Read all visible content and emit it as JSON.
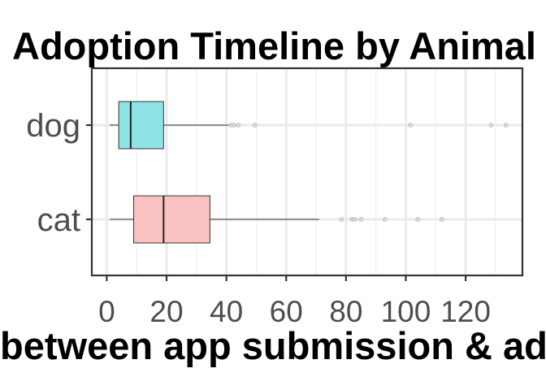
{
  "chart_data": {
    "type": "boxplot",
    "orientation": "horizontal",
    "title": "Adoption Timeline by Animal",
    "xlabel": "Days between app submission & adoption",
    "ylabel": "",
    "xlim": [
      -5,
      139
    ],
    "x_ticks": [
      0,
      20,
      40,
      60,
      80,
      100,
      120
    ],
    "x_tick_labels": [
      "0",
      "20",
      "40",
      "60",
      "80",
      "100",
      "120"
    ],
    "grid": true,
    "legend": "none",
    "categories": [
      "dog",
      "cat"
    ],
    "series": [
      {
        "category": "dog",
        "color": "#8fe3e5",
        "whisker_low": 1,
        "q1": 4,
        "median": 8,
        "q3": 19,
        "whisker_high": 41,
        "outliers": [
          41.5,
          42.5,
          44,
          49.5,
          101.5,
          128.5,
          133.5
        ]
      },
      {
        "category": "cat",
        "color": "#f9c1c0",
        "whisker_low": 1,
        "q1": 9,
        "median": 19,
        "q3": 34.5,
        "whisker_high": 71,
        "outliers": [
          78.5,
          82,
          83,
          85,
          93,
          104,
          112
        ]
      }
    ]
  }
}
